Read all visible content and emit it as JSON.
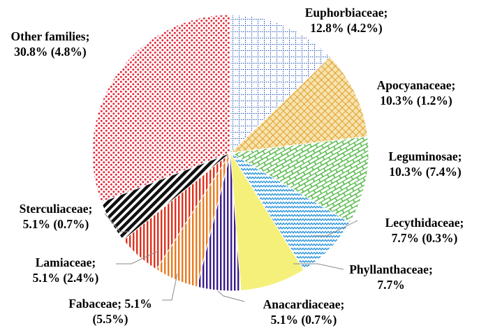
{
  "chart_data": {
    "type": "pie",
    "title": "",
    "start_direction": "top",
    "direction": "clockwise",
    "slices": [
      {
        "name": "Euphorbiaceae",
        "value": 12.8,
        "paren": 4.2,
        "label_lines": [
          "Euphorbiaceae;",
          "12.8% (4.2%)"
        ],
        "fill": "#1f4fb0",
        "pattern": "grid-dots"
      },
      {
        "name": "Apocyanaceae",
        "value": 10.3,
        "paren": 1.2,
        "label_lines": [
          "Apocyanaceae;",
          "10.3% (1.2%)"
        ],
        "fill": "#e8b640",
        "pattern": "diagonal-hatch"
      },
      {
        "name": "Leguminosae",
        "value": 10.3,
        "paren": 7.4,
        "label_lines": [
          "Leguminosae;",
          "10.3% (7.4%)"
        ],
        "fill": "#55b84a",
        "pattern": "brick"
      },
      {
        "name": "Lecythidaceae",
        "value": 7.7,
        "paren": 0.3,
        "label_lines": [
          "Lecythidaceae;",
          "7.7% (0.3%)"
        ],
        "fill": "#1e8fd8",
        "pattern": "zigzag"
      },
      {
        "name": "Phyllanthaceae",
        "value": 7.7,
        "paren": null,
        "label_lines": [
          "Phyllanthaceae;",
          "7.7%"
        ],
        "fill": "#f5f07a",
        "pattern": "solid"
      },
      {
        "name": "Anacardiaceae",
        "value": 5.1,
        "paren": 0.7,
        "label_lines": [
          "Anacardiaceae;",
          "5.1% (0.7%)"
        ],
        "fill": "#3a1a8c",
        "pattern": "vertical-stripes"
      },
      {
        "name": "Fabaceae",
        "value": 5.1,
        "paren": 5.5,
        "label_lines": [
          "Fabaceae; 5.1%",
          "(5.5%)"
        ],
        "fill": "#e87a1f",
        "pattern": "vertical-stripes"
      },
      {
        "name": "Lamiaceae",
        "value": 5.1,
        "paren": 2.4,
        "label_lines": [
          "Lamiaceae;",
          "5.1% (2.4%)"
        ],
        "fill": "#e0301c",
        "pattern": "vertical-stripes"
      },
      {
        "name": "Sterculiaceae",
        "value": 5.1,
        "paren": 0.7,
        "label_lines": [
          "Sterculiaceae;",
          "5.1% (0.7%)"
        ],
        "fill": "#111111",
        "pattern": "diagonal-stripes"
      },
      {
        "name": "Other families",
        "value": 30.8,
        "paren": 4.8,
        "label_lines": [
          "Other families;",
          "30.8% (4.8%)"
        ],
        "fill": "#e2293a",
        "pattern": "dots"
      }
    ]
  }
}
